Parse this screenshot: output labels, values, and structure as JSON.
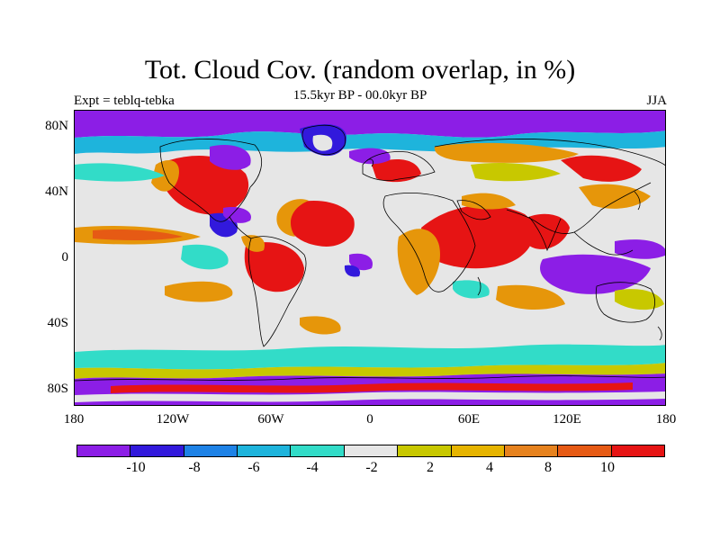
{
  "title": "Tot. Cloud Cov. (random overlap, in %)",
  "subtitle": "15.5kyr BP - 00.0kyr BP",
  "experiment_label": "Expt = teblq-tebka",
  "season": "JJA",
  "y_axis_labels": [
    "80N",
    "40N",
    "0",
    "40S",
    "80S"
  ],
  "x_axis_labels": [
    "180",
    "120W",
    "60W",
    "0",
    "60E",
    "120E",
    "180"
  ],
  "colorbar": {
    "colors": [
      "#8c1ee6",
      "#3219dc",
      "#1e82e6",
      "#1eb4dc",
      "#32dcc8",
      "#e6e6e6",
      "#c8c800",
      "#e6b400",
      "#e6821e",
      "#e65a14",
      "#e61414"
    ],
    "labels": [
      "-10",
      "-8",
      "-6",
      "-4",
      "-2",
      "2",
      "4",
      "8",
      "10"
    ]
  },
  "map_colors": {
    "neutral": "#e6e6e6",
    "purple": "#8c1ee6",
    "blue": "#3219dc",
    "lightblue": "#1eb4dc",
    "cyan": "#32dcc8",
    "yellow": "#c8c800",
    "orange": "#e6960a",
    "dark_orange": "#e65a14",
    "red": "#e61414",
    "coast": "#000000"
  }
}
